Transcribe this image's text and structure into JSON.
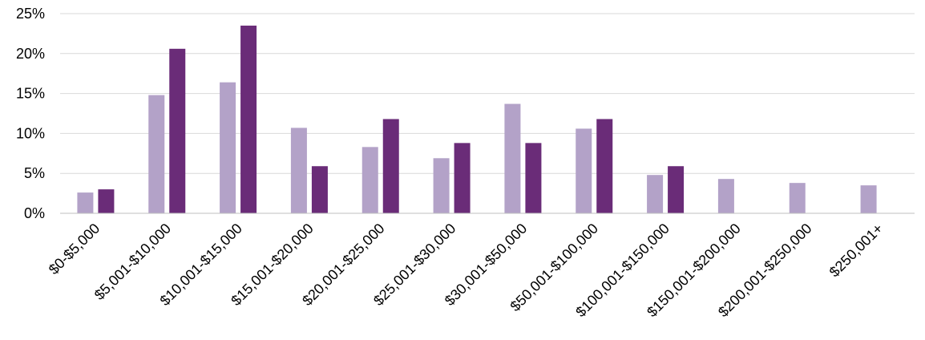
{
  "chart_data": {
    "type": "bar",
    "categories": [
      "$0-$5,000",
      "$5,001-$10,000",
      "$10,001-$15,000",
      "$15,001-$20,000",
      "$20,001-$25,000",
      "$25,001-$30,000",
      "$30,001-$50,000",
      "$50,001-$100,000",
      "$100,001-$150,000",
      "$150,001-$200,000",
      "$200,001-$250,000",
      "$250,001+"
    ],
    "series": [
      {
        "values": [
          2.6,
          14.8,
          16.4,
          10.7,
          8.3,
          6.9,
          13.7,
          10.6,
          4.8,
          4.3,
          3.8,
          3.5
        ],
        "color": "#b3a2c8"
      },
      {
        "values": [
          3.0,
          20.6,
          23.5,
          5.9,
          11.8,
          8.8,
          8.8,
          11.8,
          5.9,
          null,
          null,
          null
        ],
        "color": "#6a2c78"
      }
    ],
    "yticks": [
      0,
      5,
      10,
      15,
      20,
      25
    ],
    "ytick_labels": [
      "0%",
      "5%",
      "10%",
      "15%",
      "20%",
      "25%"
    ],
    "ylim": [
      0,
      25
    ],
    "title": "",
    "xlabel": "",
    "ylabel": "",
    "grid": true,
    "legend": "none"
  }
}
